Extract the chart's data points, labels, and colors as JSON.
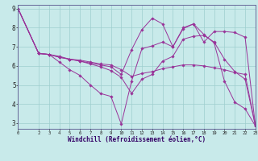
{
  "xlabel": "Windchill (Refroidissement éolien,°C)",
  "background_color": "#c8eaea",
  "line_color": "#993399",
  "grid_color": "#9ecece",
  "axis_color": "#666699",
  "label_color": "#330066",
  "xlim": [
    0,
    23
  ],
  "ylim": [
    2.7,
    9.2
  ],
  "xticks": [
    0,
    2,
    3,
    4,
    5,
    6,
    7,
    8,
    9,
    10,
    11,
    12,
    13,
    14,
    15,
    16,
    17,
    18,
    19,
    20,
    21,
    22,
    23
  ],
  "yticks": [
    3,
    4,
    5,
    6,
    7,
    8,
    9
  ],
  "lines": [
    {
      "x": [
        0,
        2,
        3,
        4,
        5,
        6,
        7,
        8,
        9,
        10,
        11,
        12,
        13,
        14,
        15,
        16,
        17,
        18,
        19,
        20,
        21,
        22,
        23
      ],
      "y": [
        9.0,
        6.65,
        6.6,
        6.2,
        5.8,
        5.5,
        5.0,
        4.55,
        4.4,
        2.95,
        5.2,
        6.9,
        7.05,
        7.25,
        7.0,
        7.95,
        8.2,
        7.65,
        7.2,
        5.2,
        4.1,
        3.75,
        2.85
      ]
    },
    {
      "x": [
        0,
        2,
        3,
        4,
        5,
        6,
        7,
        8,
        9,
        10,
        11,
        12,
        13,
        14,
        15,
        16,
        17,
        18,
        19,
        20,
        21,
        22,
        23
      ],
      "y": [
        9.0,
        6.65,
        6.6,
        6.5,
        6.35,
        6.25,
        6.15,
        6.05,
        5.95,
        5.55,
        6.85,
        7.9,
        8.5,
        8.2,
        7.0,
        8.0,
        8.2,
        7.25,
        7.8,
        7.8,
        7.75,
        7.5,
        2.85
      ]
    },
    {
      "x": [
        0,
        2,
        3,
        4,
        5,
        6,
        7,
        8,
        9,
        10,
        11,
        12,
        13,
        14,
        15,
        16,
        17,
        18,
        19,
        20,
        21,
        22,
        23
      ],
      "y": [
        9.0,
        6.65,
        6.6,
        6.45,
        6.35,
        6.3,
        6.2,
        6.1,
        6.05,
        5.8,
        5.45,
        5.6,
        5.7,
        5.85,
        5.95,
        6.05,
        6.05,
        6.0,
        5.9,
        5.8,
        5.65,
        5.55,
        2.85
      ]
    },
    {
      "x": [
        0,
        2,
        3,
        4,
        5,
        6,
        7,
        8,
        9,
        10,
        11,
        12,
        13,
        14,
        15,
        16,
        17,
        18,
        19,
        20,
        21,
        22,
        23
      ],
      "y": [
        9.0,
        6.65,
        6.6,
        6.45,
        6.35,
        6.25,
        6.1,
        5.95,
        5.75,
        5.4,
        4.55,
        5.3,
        5.55,
        6.25,
        6.5,
        7.4,
        7.55,
        7.6,
        7.25,
        6.35,
        5.7,
        5.3,
        2.85
      ]
    }
  ]
}
